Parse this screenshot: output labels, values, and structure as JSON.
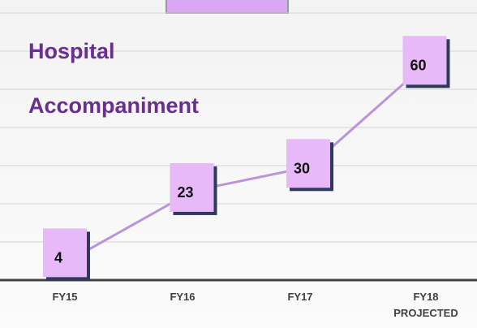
{
  "chart_data": {
    "type": "line",
    "title": "Hospital Accompaniment",
    "categories": [
      "FY15",
      "FY16",
      "FY17",
      "FY18 PROJECTED"
    ],
    "values": [
      4,
      23,
      30,
      60
    ],
    "color": "#b994d9",
    "ylim": [
      -3,
      78.5
    ]
  }
}
